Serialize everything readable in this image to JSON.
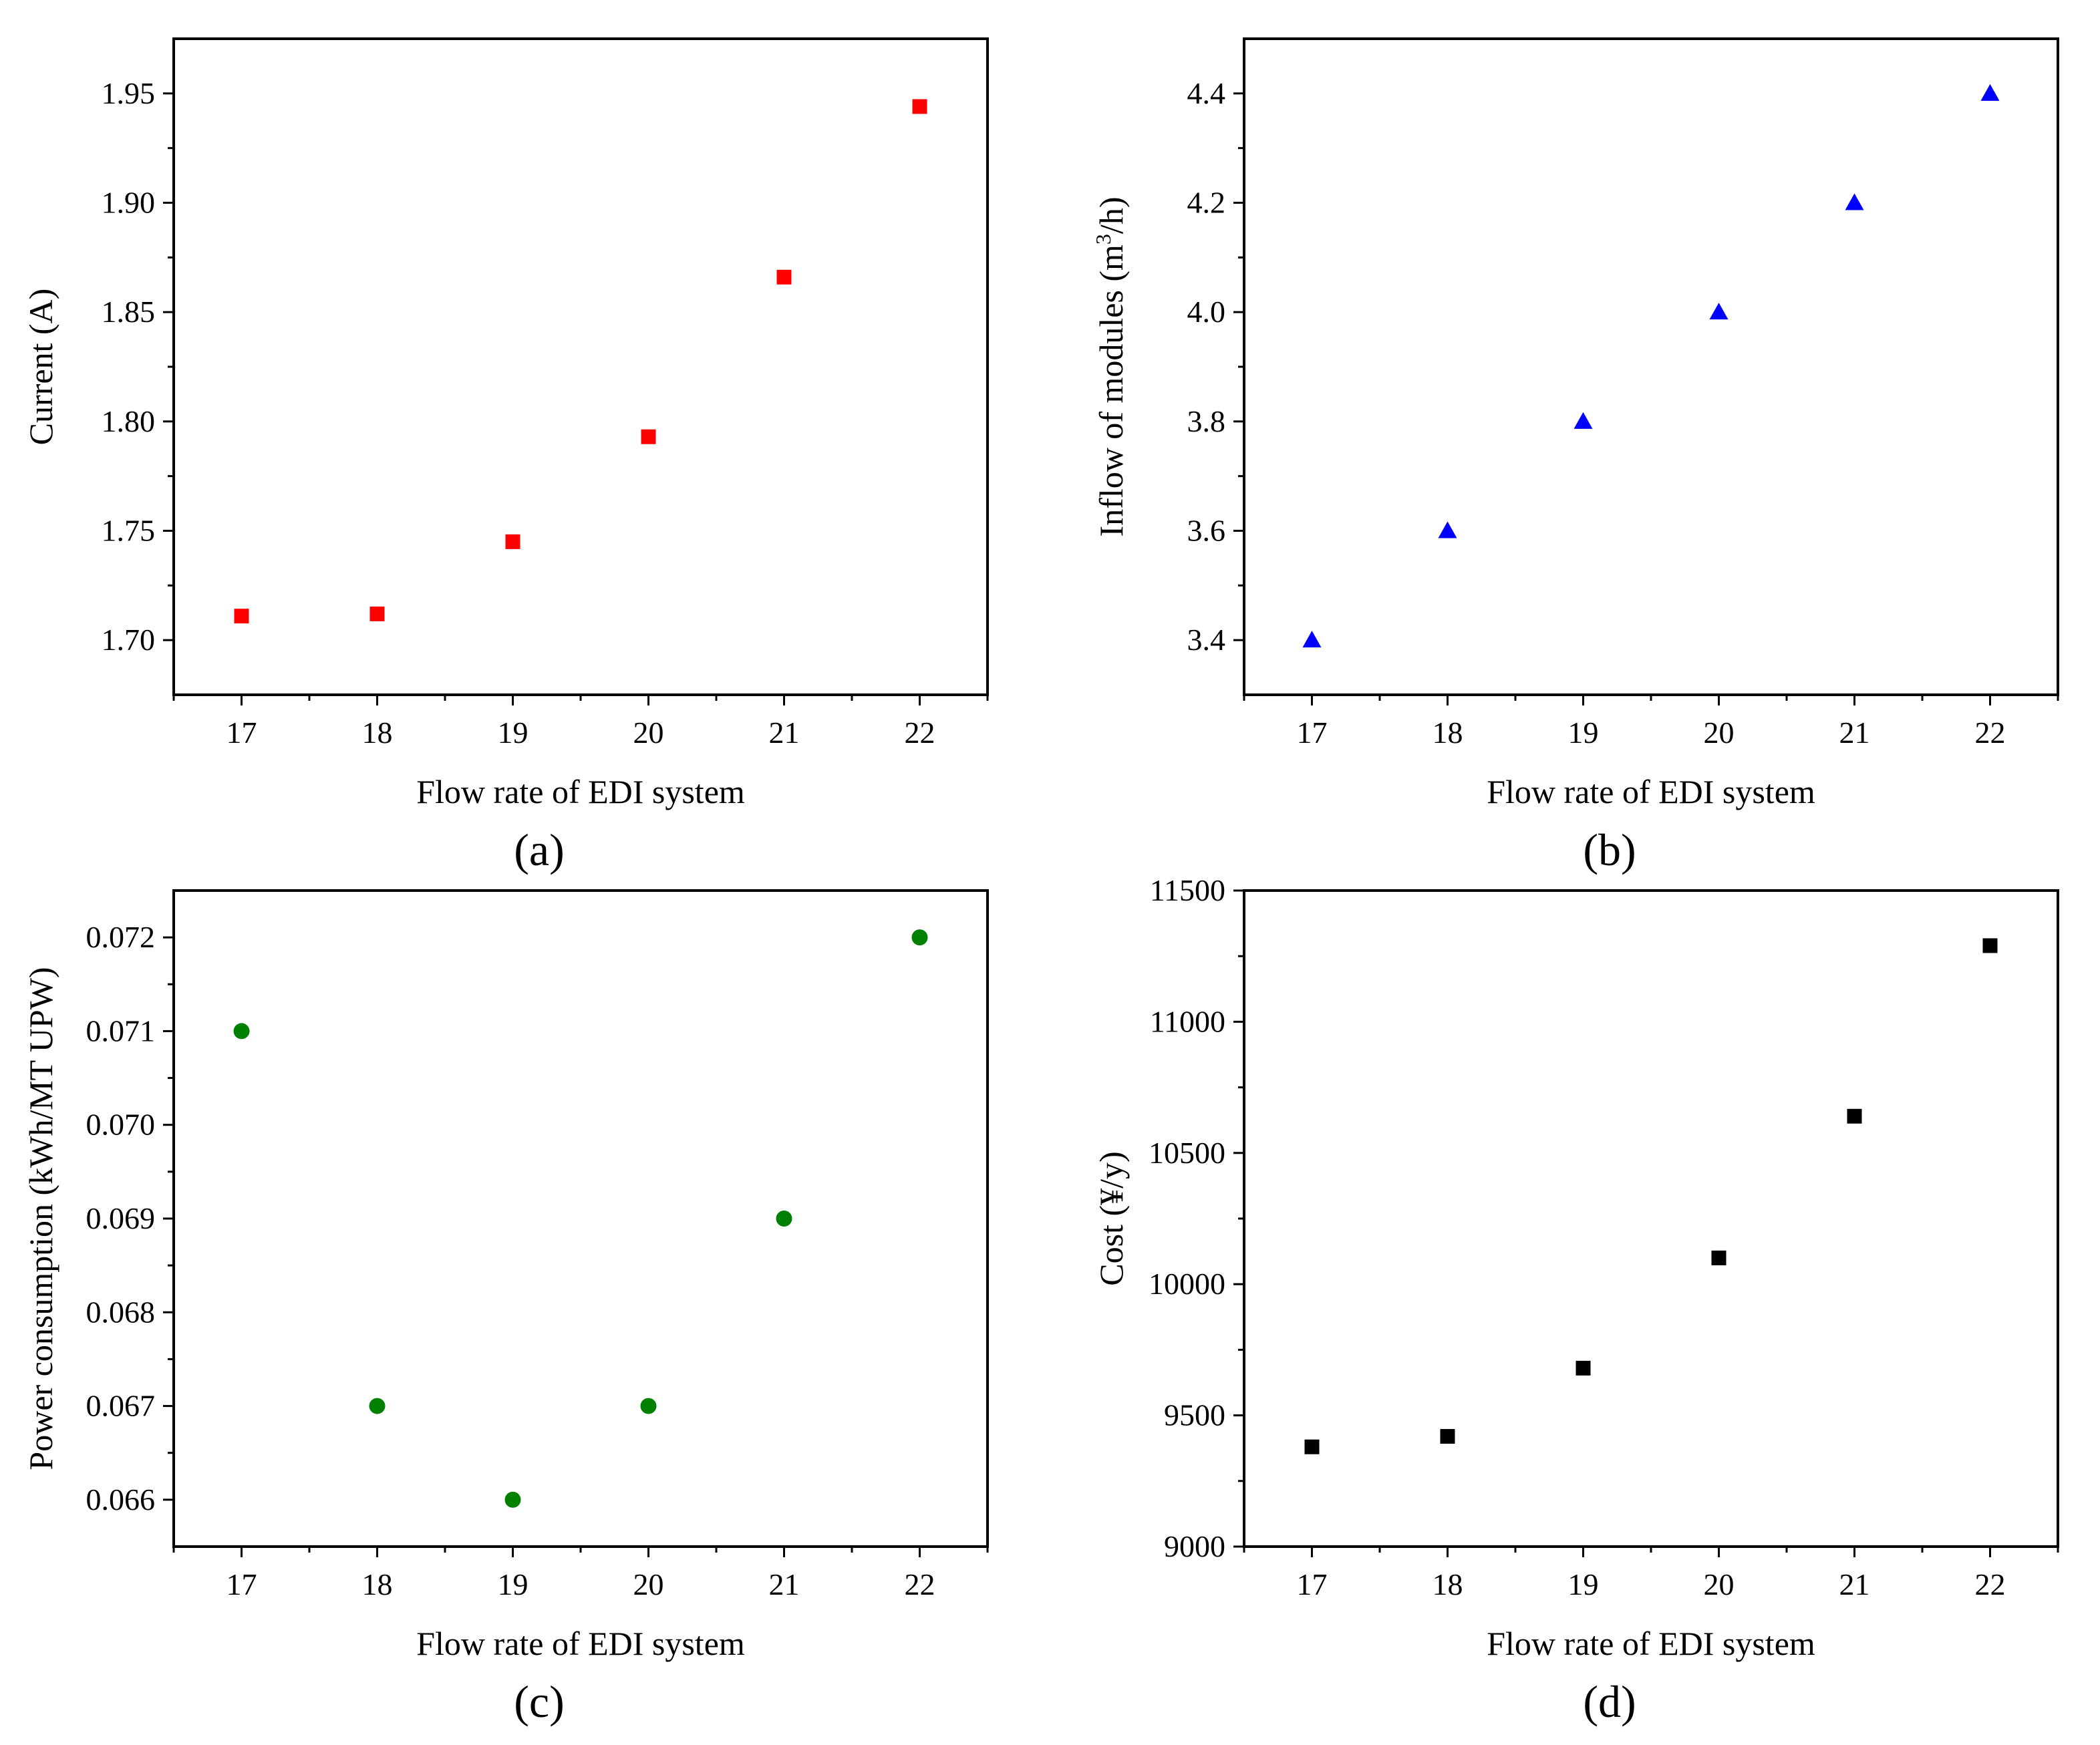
{
  "chart_data": [
    {
      "type": "scatter",
      "panel_label": "(a)",
      "xlabel": "Flow rate of EDI system",
      "ylabel": "Current (A)",
      "x": [
        17,
        18,
        19,
        20,
        21,
        22
      ],
      "y": [
        1.711,
        1.712,
        1.745,
        1.793,
        1.866,
        1.944
      ],
      "xlim": [
        16.5,
        22.5
      ],
      "ylim": [
        1.675,
        1.975
      ],
      "xticks": [
        17,
        18,
        19,
        20,
        21,
        22
      ],
      "xtick_labels": [
        "17",
        "18",
        "19",
        "20",
        "21",
        "22"
      ],
      "yticks": [
        1.7,
        1.75,
        1.8,
        1.85,
        1.9,
        1.95
      ],
      "ytick_labels": [
        "1.70",
        "1.75",
        "1.80",
        "1.85",
        "1.90",
        "1.95"
      ],
      "marker": "square",
      "color": "#ff0000",
      "grid": false
    },
    {
      "type": "scatter",
      "panel_label": "(b)",
      "xlabel": "Flow rate of EDI system",
      "ylabel_main": "Inflow of modules (m",
      "ylabel_sup": "3",
      "ylabel_tail": "/h)",
      "x": [
        17,
        18,
        19,
        20,
        21,
        22
      ],
      "y": [
        3.4,
        3.6,
        3.8,
        4.0,
        4.2,
        4.4
      ],
      "xlim": [
        16.5,
        22.5
      ],
      "ylim": [
        3.3,
        4.5
      ],
      "xticks": [
        17,
        18,
        19,
        20,
        21,
        22
      ],
      "xtick_labels": [
        "17",
        "18",
        "19",
        "20",
        "21",
        "22"
      ],
      "yticks": [
        3.4,
        3.6,
        3.8,
        4.0,
        4.2,
        4.4
      ],
      "ytick_labels": [
        "3.4",
        "3.6",
        "3.8",
        "4.0",
        "4.2",
        "4.4"
      ],
      "marker": "triangle",
      "color": "#0000ff",
      "grid": false
    },
    {
      "type": "scatter",
      "panel_label": "(c)",
      "xlabel": "Flow rate of EDI system",
      "ylabel": "Power consumption (kWh/MT UPW)",
      "x": [
        17,
        18,
        19,
        20,
        21,
        22
      ],
      "y": [
        0.071,
        0.067,
        0.066,
        0.067,
        0.069,
        0.072
      ],
      "xlim": [
        16.5,
        22.5
      ],
      "ylim": [
        0.0655,
        0.0725
      ],
      "xticks": [
        17,
        18,
        19,
        20,
        21,
        22
      ],
      "xtick_labels": [
        "17",
        "18",
        "19",
        "20",
        "21",
        "22"
      ],
      "yticks": [
        0.066,
        0.067,
        0.068,
        0.069,
        0.07,
        0.071,
        0.072
      ],
      "ytick_labels": [
        "0.066",
        "0.067",
        "0.068",
        "0.069",
        "0.070",
        "0.071",
        "0.072"
      ],
      "marker": "circle",
      "color": "#008000",
      "grid": false
    },
    {
      "type": "scatter",
      "panel_label": "(d)",
      "xlabel": "Flow rate of EDI system",
      "ylabel": "Cost (¥/y)",
      "x": [
        17,
        18,
        19,
        20,
        21,
        22
      ],
      "y": [
        9380,
        9420,
        9680,
        10100,
        10640,
        11290
      ],
      "xlim": [
        16.5,
        22.5
      ],
      "ylim": [
        9000,
        11500
      ],
      "xticks": [
        17,
        18,
        19,
        20,
        21,
        22
      ],
      "xtick_labels": [
        "17",
        "18",
        "19",
        "20",
        "21",
        "22"
      ],
      "yticks": [
        9000,
        9500,
        10000,
        10500,
        11000,
        11500
      ],
      "ytick_labels": [
        "9000",
        "9500",
        "10000",
        "10500",
        "11000",
        "11500"
      ],
      "marker": "square",
      "color": "#000000",
      "grid": false
    }
  ]
}
